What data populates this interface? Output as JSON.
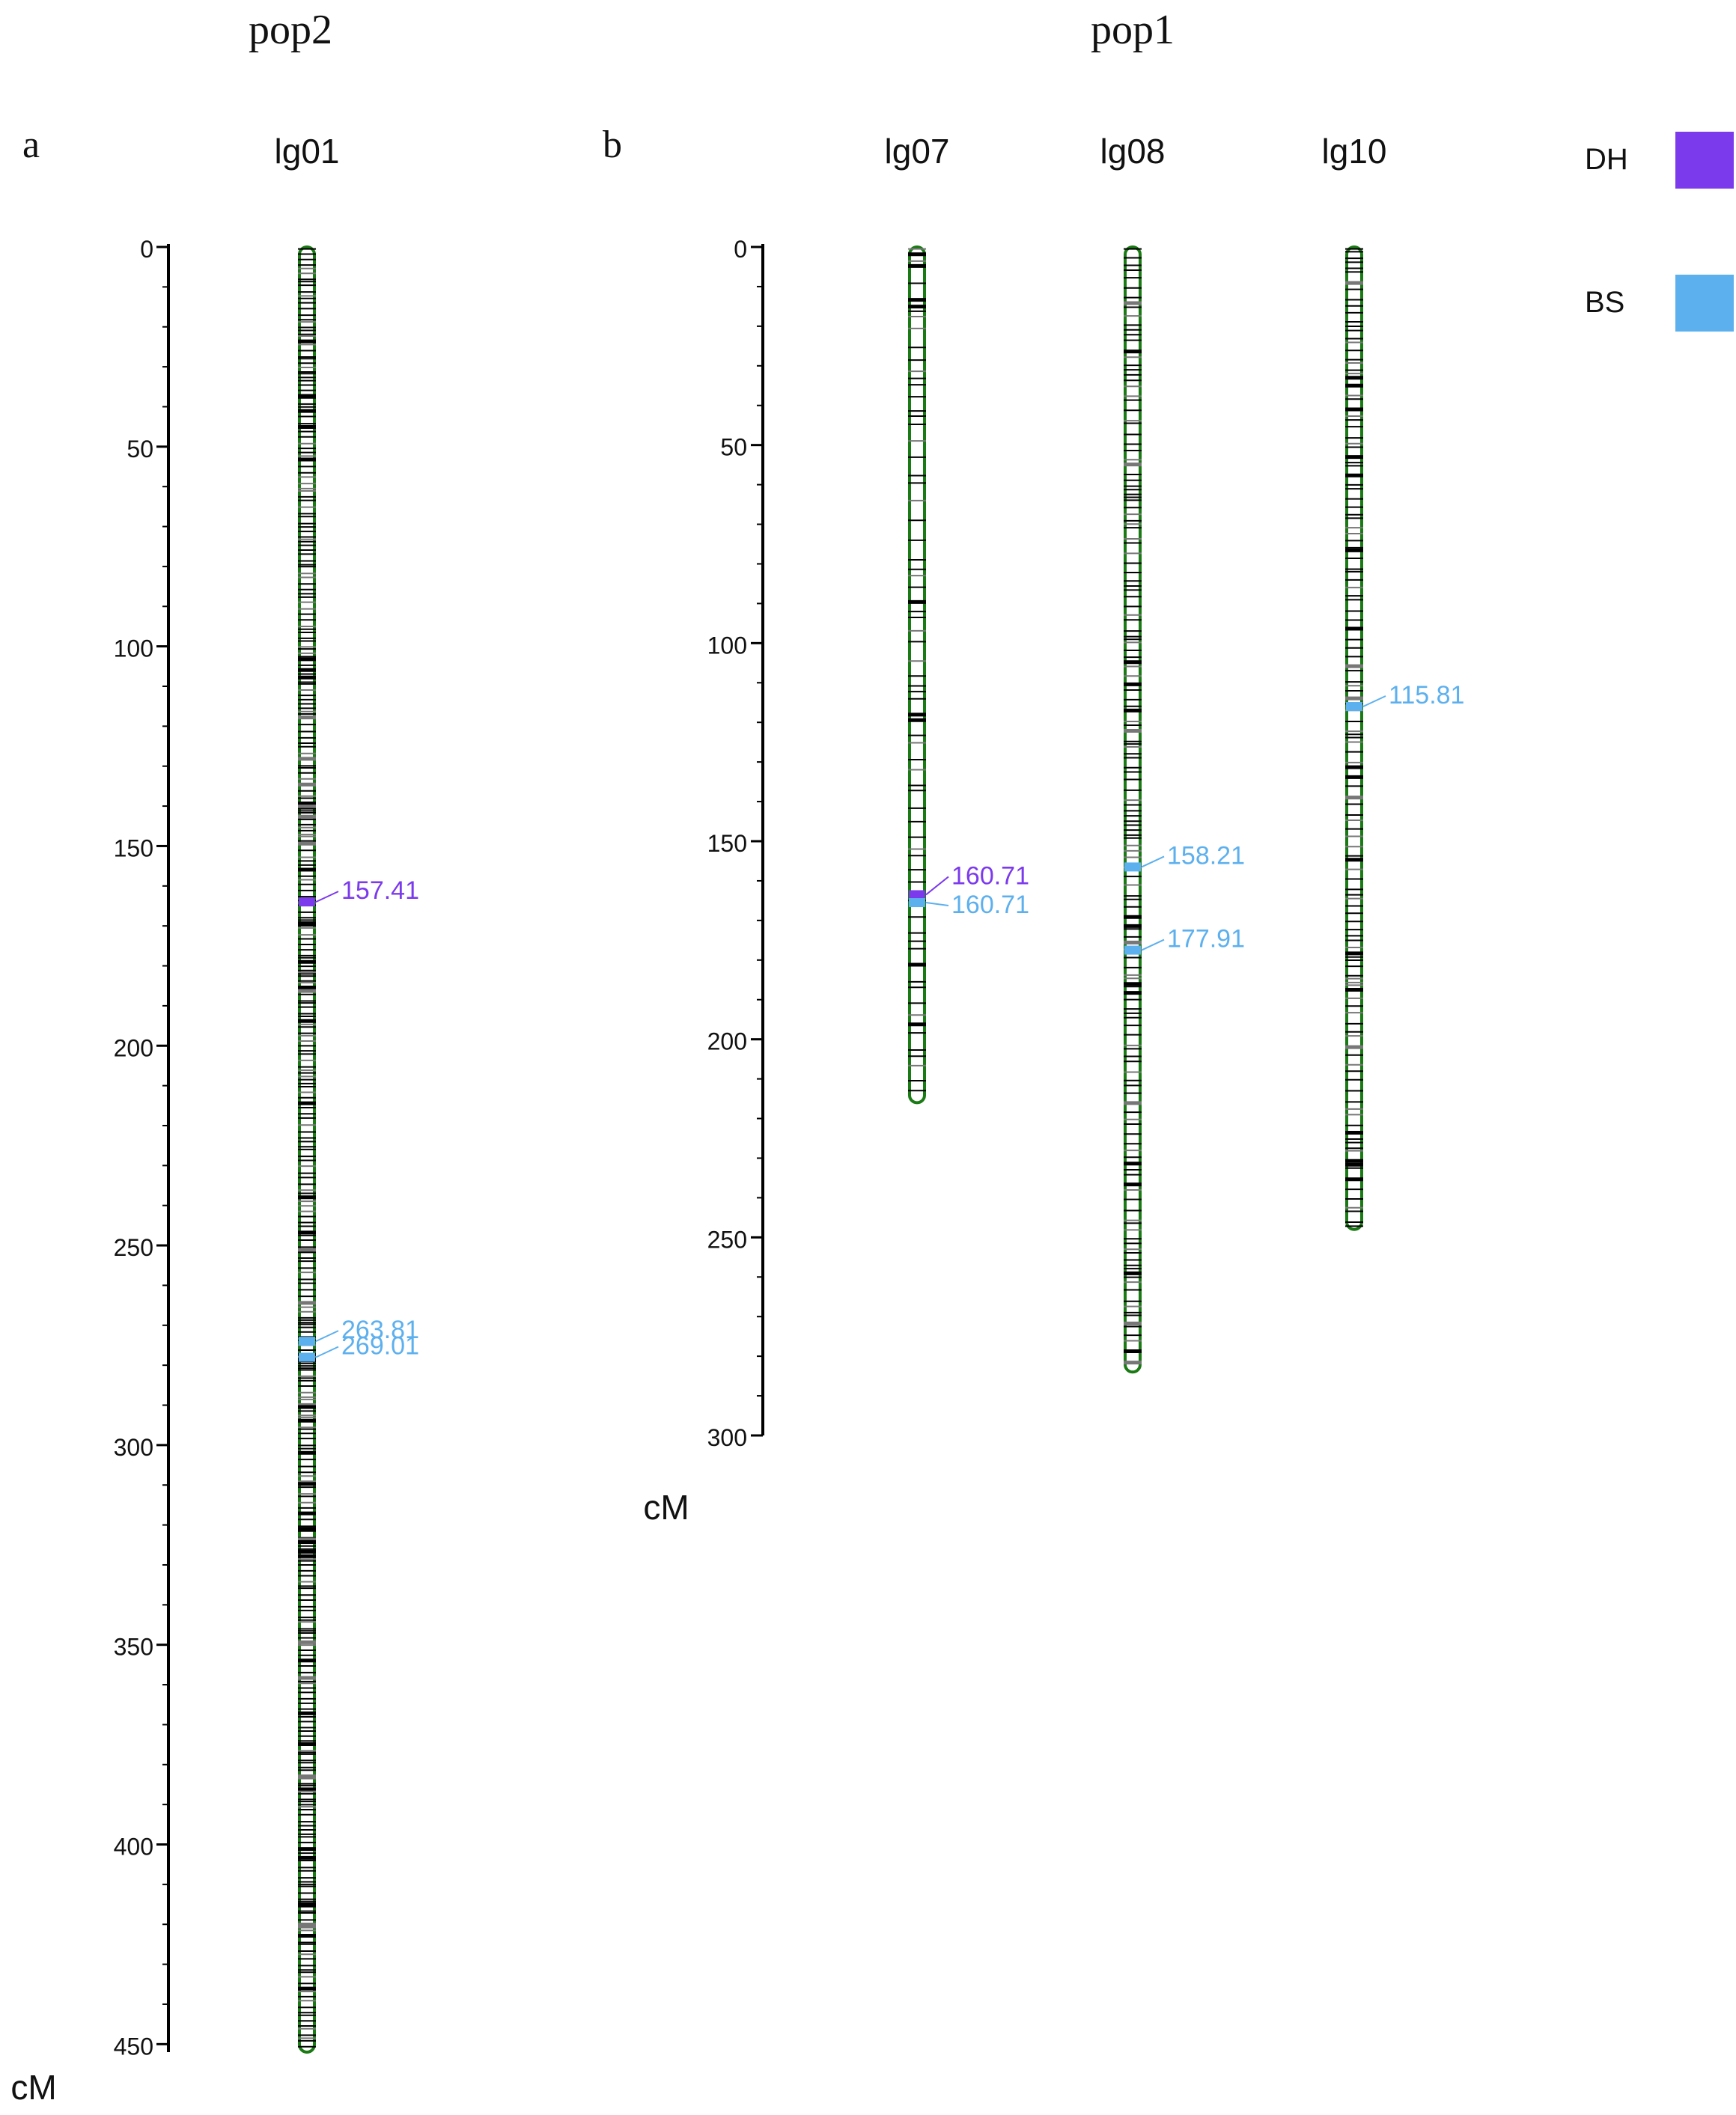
{
  "figure": {
    "population_labels": {
      "left": "pop2",
      "right": "pop1"
    },
    "panel_labels": {
      "a": "a",
      "b": "b"
    },
    "legend": [
      {
        "label": "DH",
        "color": "#7c3aed"
      },
      {
        "label": "BS",
        "color": "#5db0ee"
      }
    ],
    "colors": {
      "chromosome_outline": "#1a7a14",
      "marker": "#000000",
      "axis": "#000000",
      "DH": "#7c3aed",
      "BS": "#5db0ee"
    }
  },
  "panels": [
    {
      "id": "a",
      "axis_unit": "cM",
      "ticks": [
        0,
        50,
        100,
        150,
        200,
        250,
        300,
        350,
        400,
        450
      ],
      "minor_tick_step": 10,
      "axis_max": 452,
      "linkage_groups": [
        {
          "name": "lg01",
          "length": 452,
          "marker_density": "very-dense",
          "qtl": [
            {
              "label": "157.41",
              "trait": "DH",
              "position": 164
            },
            {
              "label": "263.81",
              "trait": "BS",
              "position": 274
            },
            {
              "label": "269.01",
              "trait": "BS",
              "position": 278
            }
          ]
        }
      ]
    },
    {
      "id": "b",
      "axis_unit": "cM",
      "ticks": [
        0,
        50,
        100,
        150,
        200,
        250,
        300
      ],
      "minor_tick_step": 10,
      "axis_max": 300,
      "linkage_groups": [
        {
          "name": "lg07",
          "length": 216,
          "marker_density": "medium",
          "qtl": [
            {
              "label": "160.71",
              "trait": "DH",
              "position": 163.5
            },
            {
              "label": "160.71",
              "trait": "BS",
              "position": 165.5
            }
          ]
        },
        {
          "name": "lg08",
          "length": 284,
          "marker_density": "dense",
          "qtl": [
            {
              "label": "158.21",
              "trait": "BS",
              "position": 156.5
            },
            {
              "label": "177.91",
              "trait": "BS",
              "position": 177.5
            }
          ]
        },
        {
          "name": "lg10",
          "length": 248,
          "marker_density": "dense",
          "qtl": [
            {
              "label": "115.81",
              "trait": "BS",
              "position": 116
            }
          ]
        }
      ]
    }
  ]
}
